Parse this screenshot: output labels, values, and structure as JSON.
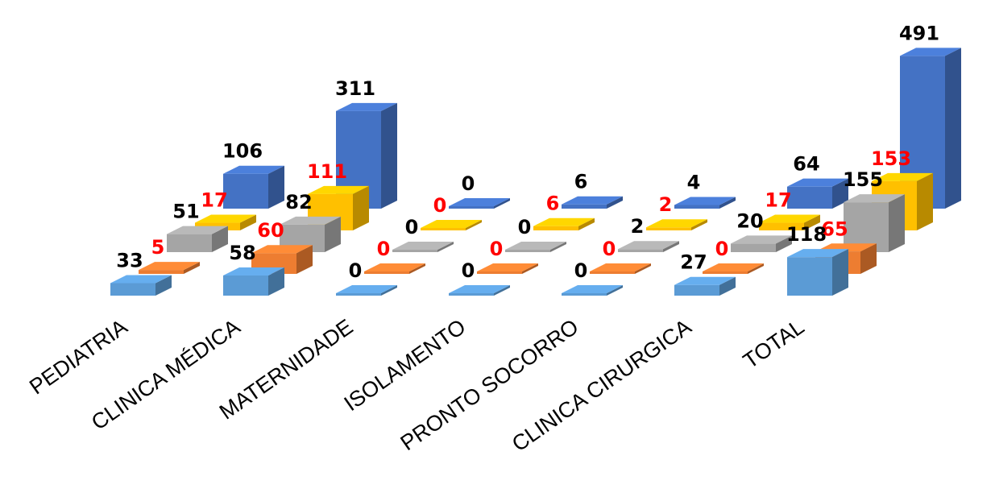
{
  "chart_data": {
    "type": "bar",
    "categories": [
      "PEDIATRIA",
      "CLINICA MÉDICA",
      "MATERNIDADE",
      "ISOLAMENTO",
      "PRONTO SOCORRO",
      "CLINICA CIRURGICA",
      "TOTAL"
    ],
    "series": [
      {
        "values": [
          33,
          58,
          0,
          0,
          0,
          27,
          118
        ],
        "color": "#5B9BD5",
        "label_color": "#000000"
      },
      {
        "values": [
          5,
          60,
          0,
          0,
          0,
          0,
          65
        ],
        "color": "#ED7D31",
        "label_color": "#FF0000"
      },
      {
        "values": [
          51,
          82,
          0,
          0,
          2,
          20,
          155
        ],
        "color": "#A5A5A5",
        "label_color": "#000000"
      },
      {
        "values": [
          17,
          111,
          0,
          6,
          2,
          17,
          153
        ],
        "color": "#FFC000",
        "label_color": "#FF0000"
      },
      {
        "values": [
          106,
          311,
          0,
          6,
          4,
          64,
          491
        ],
        "color": "#4472C4",
        "label_color": "#000000"
      }
    ],
    "grid": false,
    "legend": "none"
  }
}
